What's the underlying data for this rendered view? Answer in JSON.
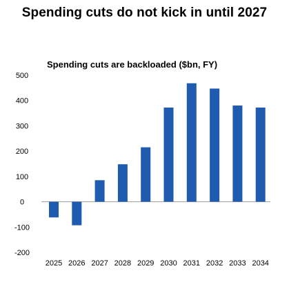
{
  "figure": {
    "title": "Spending cuts do not kick in until 2027"
  },
  "chart_data": {
    "type": "bar",
    "title": "Spending cuts are backloaded ($bn, FY)",
    "categories": [
      "2025",
      "2026",
      "2027",
      "2028",
      "2029",
      "2030",
      "2031",
      "2032",
      "2033",
      "2034"
    ],
    "values": [
      -62,
      -93,
      85,
      148,
      215,
      372,
      468,
      447,
      380,
      372
    ],
    "xlabel": "",
    "ylabel": "",
    "ylim": [
      -200,
      500
    ],
    "yticks": [
      -200,
      -100,
      0,
      100,
      200,
      300,
      400,
      500
    ],
    "grid": false,
    "legend": "none",
    "bar_color": "#1F5BAE",
    "axis_color": "#999999"
  }
}
